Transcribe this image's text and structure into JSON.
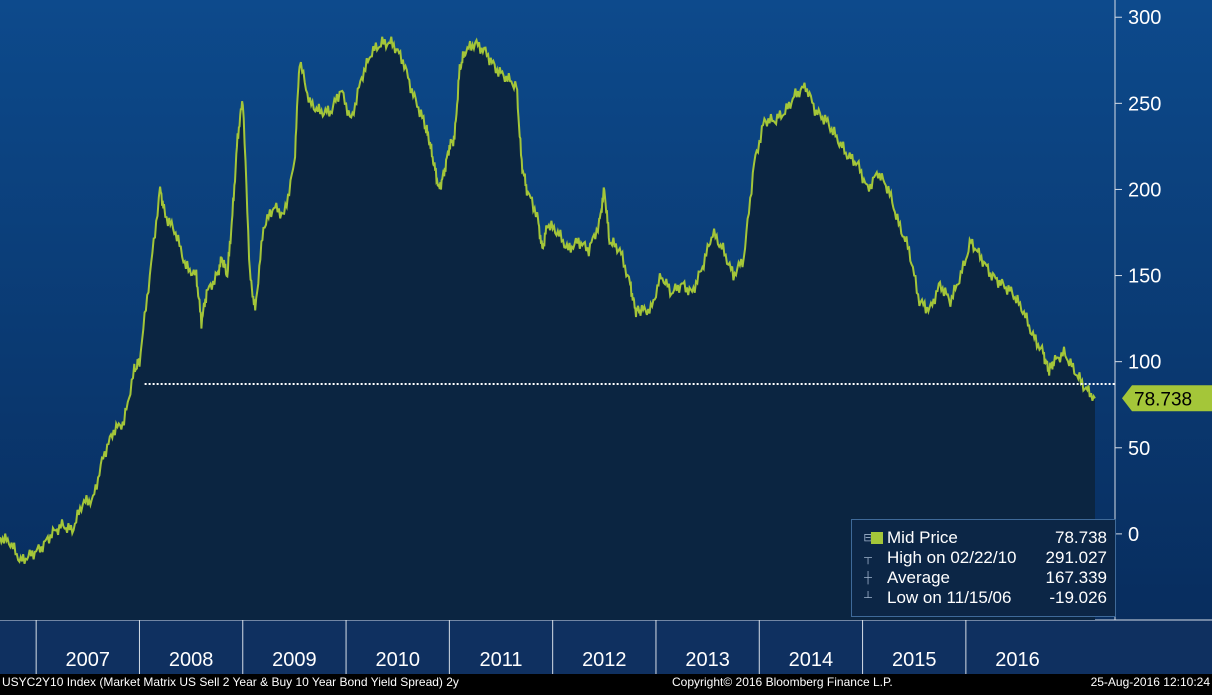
{
  "chart_data": {
    "type": "area",
    "ticker_caption": "USYC2Y10 Index (Market Matrix US Sell 2 Year & Buy 10 Year Bond Yield Spread) 2y",
    "copyright": "Copyright© 2016 Bloomberg Finance L.P.",
    "timestamp": "25-Aug-2016 12:10:24",
    "x_ticks": [
      "2007",
      "2008",
      "2009",
      "2010",
      "2011",
      "2012",
      "2013",
      "2014",
      "2015",
      "2016"
    ],
    "y_ticks": [
      "300",
      "250",
      "200",
      "150",
      "100",
      "50",
      "0"
    ],
    "ylim": [
      -50,
      310
    ],
    "last_value_label": "78.738",
    "reference_line": 87,
    "series": [
      {
        "name": "Mid Price",
        "color": "#a4c639",
        "points": [
          [
            2006.0,
            -2
          ],
          [
            2006.1,
            -5
          ],
          [
            2006.2,
            -16
          ],
          [
            2006.3,
            -12
          ],
          [
            2006.4,
            -8
          ],
          [
            2006.5,
            0
          ],
          [
            2006.6,
            5
          ],
          [
            2006.7,
            2
          ],
          [
            2006.8,
            18
          ],
          [
            2006.9,
            20
          ],
          [
            2007.0,
            45
          ],
          [
            2007.1,
            60
          ],
          [
            2007.2,
            65
          ],
          [
            2007.3,
            95
          ],
          [
            2007.35,
            100
          ],
          [
            2007.45,
            150
          ],
          [
            2007.55,
            200
          ],
          [
            2007.6,
            185
          ],
          [
            2007.7,
            175
          ],
          [
            2007.8,
            155
          ],
          [
            2007.9,
            150
          ],
          [
            2007.95,
            123
          ],
          [
            2008.0,
            140
          ],
          [
            2008.1,
            150
          ],
          [
            2008.15,
            160
          ],
          [
            2008.2,
            150
          ],
          [
            2008.25,
            185
          ],
          [
            2008.3,
            230
          ],
          [
            2008.35,
            253
          ],
          [
            2008.42,
            150
          ],
          [
            2008.47,
            130
          ],
          [
            2008.55,
            178
          ],
          [
            2008.65,
            190
          ],
          [
            2008.75,
            185
          ],
          [
            2008.85,
            215
          ],
          [
            2008.9,
            275
          ],
          [
            2009.0,
            250
          ],
          [
            2009.1,
            245
          ],
          [
            2009.2,
            245
          ],
          [
            2009.3,
            258
          ],
          [
            2009.4,
            240
          ],
          [
            2009.5,
            265
          ],
          [
            2009.6,
            280
          ],
          [
            2009.7,
            285
          ],
          [
            2009.8,
            285
          ],
          [
            2009.9,
            275
          ],
          [
            2010.0,
            255
          ],
          [
            2010.1,
            240
          ],
          [
            2010.15,
            230
          ],
          [
            2010.2,
            215
          ],
          [
            2010.25,
            200
          ],
          [
            2010.3,
            210
          ],
          [
            2010.35,
            225
          ],
          [
            2010.4,
            230
          ],
          [
            2010.45,
            270
          ],
          [
            2010.5,
            280
          ],
          [
            2010.6,
            285
          ],
          [
            2010.7,
            280
          ],
          [
            2010.8,
            270
          ],
          [
            2010.9,
            265
          ],
          [
            2011.0,
            260
          ],
          [
            2011.05,
            215
          ],
          [
            2011.1,
            200
          ],
          [
            2011.2,
            185
          ],
          [
            2011.25,
            165
          ],
          [
            2011.3,
            180
          ],
          [
            2011.4,
            175
          ],
          [
            2011.5,
            165
          ],
          [
            2011.6,
            170
          ],
          [
            2011.7,
            165
          ],
          [
            2011.8,
            180
          ],
          [
            2011.85,
            200
          ],
          [
            2011.9,
            170
          ],
          [
            2012.0,
            165
          ],
          [
            2012.1,
            145
          ],
          [
            2012.15,
            130
          ],
          [
            2012.2,
            130
          ],
          [
            2012.3,
            130
          ],
          [
            2012.4,
            150
          ],
          [
            2012.5,
            140
          ],
          [
            2012.6,
            145
          ],
          [
            2012.7,
            140
          ],
          [
            2012.8,
            155
          ],
          [
            2012.9,
            175
          ],
          [
            2013.0,
            165
          ],
          [
            2013.1,
            150
          ],
          [
            2013.2,
            160
          ],
          [
            2013.3,
            215
          ],
          [
            2013.4,
            240
          ],
          [
            2013.5,
            240
          ],
          [
            2013.6,
            245
          ],
          [
            2013.7,
            255
          ],
          [
            2013.8,
            260
          ],
          [
            2013.9,
            245
          ],
          [
            2014.0,
            240
          ],
          [
            2014.1,
            230
          ],
          [
            2014.2,
            220
          ],
          [
            2014.3,
            215
          ],
          [
            2014.4,
            200
          ],
          [
            2014.5,
            210
          ],
          [
            2014.6,
            200
          ],
          [
            2014.7,
            180
          ],
          [
            2014.8,
            165
          ],
          [
            2014.9,
            135
          ],
          [
            2015.0,
            130
          ],
          [
            2015.1,
            145
          ],
          [
            2015.2,
            135
          ],
          [
            2015.3,
            150
          ],
          [
            2015.4,
            170
          ],
          [
            2015.5,
            160
          ],
          [
            2015.6,
            150
          ],
          [
            2015.7,
            145
          ],
          [
            2015.8,
            140
          ],
          [
            2015.9,
            130
          ],
          [
            2016.0,
            115
          ],
          [
            2016.1,
            105
          ],
          [
            2016.15,
            95
          ],
          [
            2016.2,
            100
          ],
          [
            2016.3,
            105
          ],
          [
            2016.4,
            95
          ],
          [
            2016.5,
            85
          ],
          [
            2016.6,
            78.738
          ]
        ]
      }
    ],
    "legend": [
      {
        "label": "Mid Price",
        "value": "78.738",
        "icon": "square-swatch"
      },
      {
        "label": "High on 02/22/10",
        "value": "291.027",
        "icon": "high-marker"
      },
      {
        "label": "Average",
        "value": "167.339",
        "icon": "average-marker"
      },
      {
        "label": "Low on 11/15/06",
        "value": "-19.026",
        "icon": "low-marker"
      }
    ],
    "colors": {
      "line": "#a4c639",
      "bg_top": "#0d4a8c",
      "bg_bottom": "#082d5e",
      "area": "#0b2541",
      "text": "#ffffff"
    }
  }
}
